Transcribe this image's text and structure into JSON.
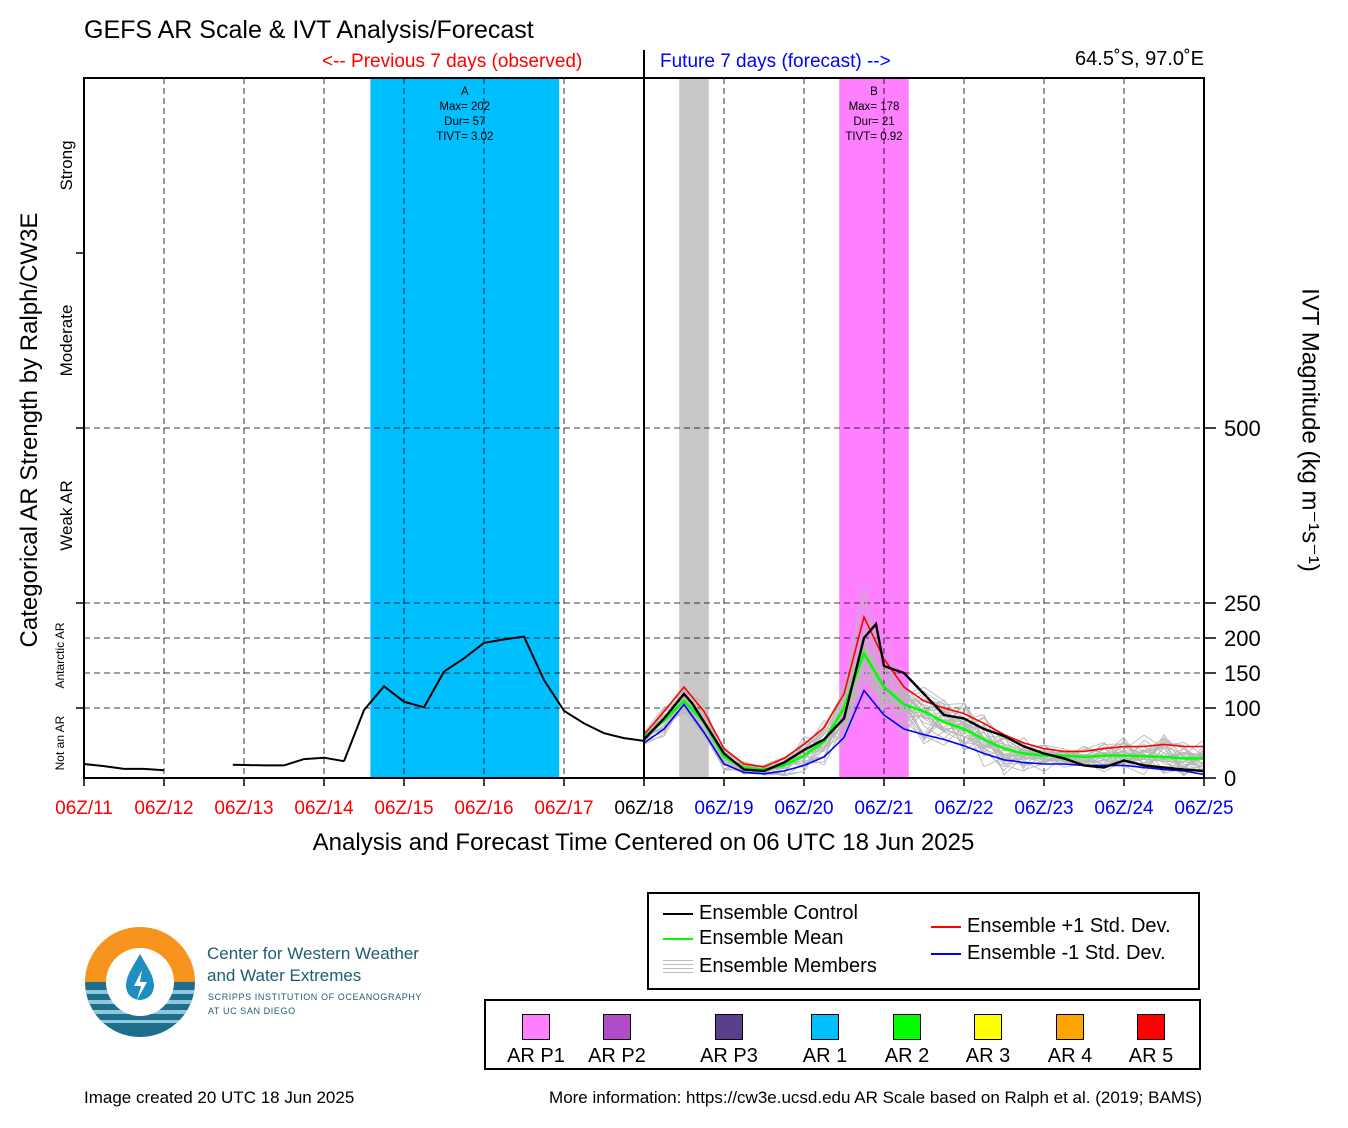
{
  "title": "GEFS AR Scale & IVT Analysis/Forecast",
  "prev_label": "<-- Previous 7 days (observed)",
  "future_label": "Future 7 days (forecast) -->",
  "location": "64.5˚S, 97.0˚E",
  "colors": {
    "observed_tick": "#ff0000",
    "now_tick": "#000000",
    "forecast_tick": "#0000ff"
  },
  "chart_data": {
    "type": "line",
    "title": "GEFS AR Scale & IVT Analysis/Forecast",
    "xlabel": "Analysis and Forecast Time Centered on 06 UTC 18 Jun 2025",
    "ylabel_left": "Categorical AR Strength by Ralph/CW3E",
    "ylabel_right": "IVT Magnitude (kg m⁻¹s⁻¹)",
    "x_ticks": [
      "06Z/11",
      "06Z/12",
      "06Z/13",
      "06Z/14",
      "06Z/15",
      "06Z/16",
      "06Z/17",
      "06Z/18",
      "06Z/19",
      "06Z/20",
      "06Z/21",
      "06Z/22",
      "06Z/23",
      "06Z/24",
      "06Z/25"
    ],
    "x_range_days": [
      0,
      14
    ],
    "now_day": 7,
    "y_ticks": [
      0,
      100,
      150,
      200,
      250,
      500
    ],
    "y_categories": [
      {
        "label": "Not an AR",
        "y": [
          0,
          100
        ]
      },
      {
        "label": "Antarctic AR",
        "y": [
          100,
          250
        ]
      },
      {
        "label": "Weak AR",
        "y": [
          250,
          500
        ]
      },
      {
        "label": "Moderate",
        "y": [
          500,
          750
        ]
      },
      {
        "label": "Strong",
        "y": [
          750,
          1000
        ]
      }
    ],
    "grid": true,
    "ar_events": [
      {
        "id": "A",
        "start": 3.58,
        "end": 5.94,
        "color": "#00bfff",
        "category": "AR 1",
        "label_lines": [
          "A",
          "Max= 202",
          "Dur= 57",
          "TIVT= 3.02"
        ]
      },
      {
        "id": "B",
        "start": 9.44,
        "end": 10.31,
        "color": "#ff80ff",
        "category": "AR P1",
        "label_lines": [
          "B",
          "Max= 178",
          "Dur= 21",
          "TIVT= 0.92"
        ]
      }
    ],
    "gray_band": {
      "start": 7.44,
      "end": 7.81
    },
    "observed": {
      "segments": [
        {
          "x": [
            0,
            0.25,
            0.5,
            0.75,
            1.0
          ],
          "y": [
            20,
            17,
            13,
            13,
            11
          ]
        },
        {
          "x": [
            1.86,
            2.25,
            2.5,
            2.75,
            3.0,
            3.25
          ],
          "y": [
            19,
            18,
            18,
            27,
            29,
            24
          ]
        },
        {
          "x": [
            3.25,
            3.5,
            3.75,
            4.0,
            4.25,
            4.5,
            4.75,
            5.0,
            5.25,
            5.5,
            5.75,
            6.0,
            6.25,
            6.5,
            6.75,
            7.0
          ],
          "y": [
            24,
            97,
            131,
            109,
            101,
            152,
            171,
            193,
            198,
            202,
            140,
            96,
            78,
            64,
            57,
            53
          ]
        }
      ]
    },
    "series": [
      {
        "name": "Ensemble Control",
        "color": "#000000",
        "x": [
          7.0,
          7.25,
          7.5,
          7.6,
          7.75,
          8.0,
          8.25,
          8.5,
          8.75,
          9.0,
          9.25,
          9.5,
          9.75,
          9.9,
          10.0,
          10.25,
          10.5,
          10.75,
          11.0,
          11.25,
          11.5,
          11.75,
          12.0,
          12.25,
          12.5,
          12.75,
          13.0,
          13.25,
          13.5,
          13.75,
          14.0
        ],
        "y": [
          55,
          85,
          120,
          107,
          80,
          35,
          12,
          10,
          22,
          40,
          55,
          85,
          200,
          220,
          160,
          150,
          120,
          90,
          85,
          70,
          60,
          45,
          35,
          28,
          18,
          15,
          25,
          18,
          15,
          12,
          10
        ]
      },
      {
        "name": "Ensemble Mean",
        "color": "#00ff00",
        "x": [
          7.0,
          7.25,
          7.5,
          7.75,
          8.0,
          8.25,
          8.5,
          8.75,
          9.0,
          9.25,
          9.5,
          9.75,
          10.0,
          10.25,
          10.5,
          10.75,
          11.0,
          11.25,
          11.5,
          11.75,
          12.0,
          12.25,
          12.5,
          12.75,
          13.0,
          13.25,
          13.5,
          13.75,
          14.0
        ],
        "y": [
          58,
          82,
          110,
          80,
          30,
          15,
          12,
          18,
          32,
          52,
          100,
          178,
          130,
          105,
          95,
          80,
          70,
          55,
          42,
          35,
          32,
          32,
          30,
          32,
          32,
          31,
          30,
          28,
          28
        ]
      },
      {
        "name": "Ensemble +1 Std. Dev.",
        "color": "#ff0000",
        "x": [
          7.0,
          7.25,
          7.5,
          7.75,
          8.0,
          8.25,
          8.5,
          8.75,
          9.0,
          9.25,
          9.5,
          9.75,
          10.0,
          10.25,
          10.5,
          10.75,
          11.0,
          11.25,
          11.5,
          11.75,
          12.0,
          12.25,
          12.5,
          12.75,
          13.0,
          13.25,
          13.5,
          13.75,
          14.0
        ],
        "y": [
          62,
          95,
          130,
          95,
          42,
          20,
          16,
          28,
          48,
          72,
          120,
          230,
          170,
          130,
          110,
          100,
          92,
          78,
          62,
          50,
          42,
          38,
          38,
          42,
          45,
          45,
          48,
          45,
          45
        ]
      },
      {
        "name": "Ensemble -1 Std. Dev.",
        "color": "#0000ff",
        "x": [
          7.0,
          7.25,
          7.5,
          7.75,
          8.0,
          8.25,
          8.5,
          8.75,
          9.0,
          9.25,
          9.5,
          9.75,
          10.0,
          10.25,
          10.5,
          10.75,
          11.0,
          11.25,
          11.5,
          11.75,
          12.0,
          12.25,
          12.5,
          12.75,
          13.0,
          13.25,
          13.5,
          13.75,
          14.0
        ],
        "y": [
          50,
          70,
          105,
          65,
          20,
          8,
          6,
          10,
          18,
          30,
          58,
          125,
          90,
          70,
          62,
          55,
          46,
          35,
          26,
          22,
          20,
          20,
          18,
          18,
          18,
          15,
          12,
          10,
          5
        ]
      }
    ],
    "ensemble_member_count": 30
  },
  "legend": {
    "control": "Ensemble Control",
    "mean": "Ensemble Mean",
    "members": "Ensemble Members",
    "plus": "Ensemble +1 Std. Dev.",
    "minus": "Ensemble -1 Std. Dev."
  },
  "ar_scale": [
    {
      "label": "AR P1",
      "color": "#ff80ff"
    },
    {
      "label": "AR P2",
      "color": "#b04cc8"
    },
    {
      "label": "AR P3",
      "color": "#5a3f8c"
    },
    {
      "label": "AR 1",
      "color": "#00bfff"
    },
    {
      "label": "AR 2",
      "color": "#00ff00"
    },
    {
      "label": "AR 3",
      "color": "#ffff00"
    },
    {
      "label": "AR 4",
      "color": "#ffa500"
    },
    {
      "label": "AR 5",
      "color": "#ff0000"
    }
  ],
  "org": {
    "line1": "Center for Western Weather",
    "line2": "and Water Extremes",
    "line3": "SCRIPPS INSTITUTION OF OCEANOGRAPHY",
    "line4": "AT UC SAN DIEGO"
  },
  "footer": {
    "created": "Image created 20 UTC 18 Jun 2025",
    "more_info": "More information: https://cw3e.ucsd.edu AR Scale based on Ralph et al. (2019; BAMS)"
  }
}
